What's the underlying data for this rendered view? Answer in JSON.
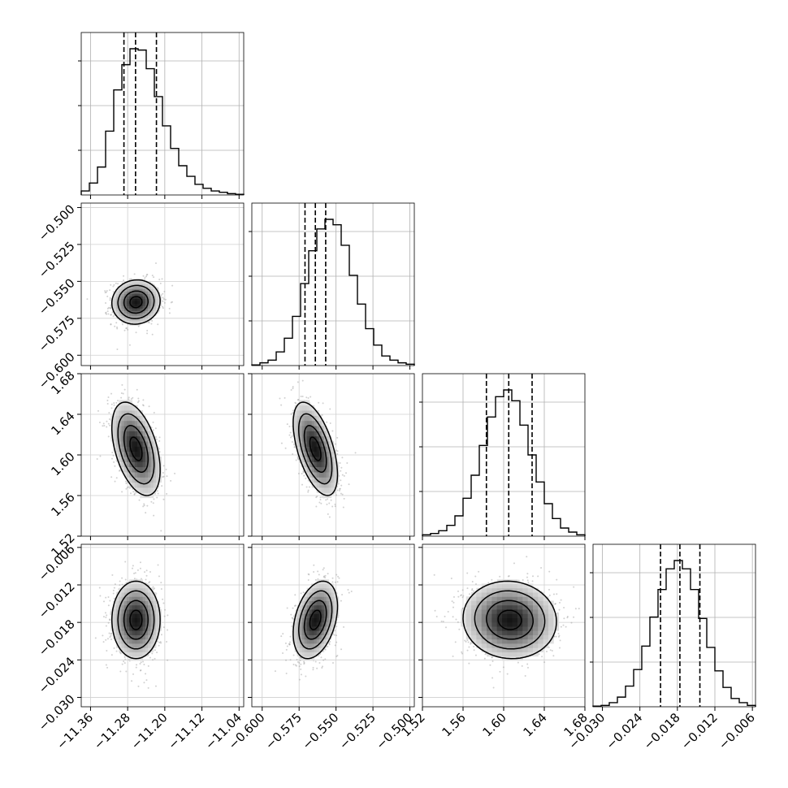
{
  "chart_data": {
    "type": "corner",
    "grid": true,
    "parameters": [
      {
        "range": [
          -11.38,
          -11.03
        ],
        "ticks": [
          "-11.36",
          "-11.28",
          "-11.20",
          "-11.12",
          "-11.04"
        ],
        "tick_values": [
          -11.36,
          -11.28,
          -11.2,
          -11.12,
          -11.04
        ],
        "quantiles": [
          -11.288,
          -11.263,
          -11.218
        ],
        "mean": -11.262,
        "std": 0.026
      },
      {
        "range": [
          -0.607,
          -0.497
        ],
        "ticks": [
          "-0.600",
          "-0.575",
          "-0.550",
          "-0.525",
          "-0.500"
        ],
        "tick_values": [
          -0.6,
          -0.575,
          -0.55,
          -0.525,
          -0.5
        ],
        "quantiles": [
          -0.571,
          -0.564,
          -0.557
        ],
        "mean": -0.564,
        "std": 0.0075
      },
      {
        "range": [
          1.52,
          1.68
        ],
        "ticks": [
          "1.52",
          "1.56",
          "1.60",
          "1.64",
          "1.68"
        ],
        "tick_values": [
          1.52,
          1.56,
          1.6,
          1.64,
          1.68
        ],
        "quantiles": [
          1.583,
          1.605,
          1.628
        ],
        "mean": 1.606,
        "std": 0.023
      },
      {
        "range": [
          -0.0315,
          -0.0055
        ],
        "ticks": [
          "-0.030",
          "-0.024",
          "-0.018",
          "-0.012",
          "-0.006"
        ],
        "tick_values": [
          -0.03,
          -0.024,
          -0.018,
          -0.012,
          -0.006
        ],
        "quantiles": [
          -0.0207,
          -0.0176,
          -0.0144
        ],
        "mean": -0.0176,
        "std": 0.0031
      }
    ],
    "histograms": [
      {
        "param": 0,
        "bins": 20,
        "counts": [
          6,
          18,
          42,
          96,
          158,
          196,
          220,
          218,
          190,
          148,
          104,
          70,
          44,
          28,
          16,
          10,
          6,
          4,
          2,
          1
        ]
      },
      {
        "param": 1,
        "bins": 20,
        "counts": [
          1,
          4,
          8,
          20,
          40,
          72,
          120,
          168,
          200,
          214,
          206,
          176,
          132,
          90,
          54,
          30,
          14,
          8,
          4,
          2
        ]
      },
      {
        "param": 2,
        "bins": 20,
        "counts": [
          2,
          4,
          8,
          16,
          30,
          56,
          90,
          134,
          176,
          206,
          216,
          200,
          164,
          120,
          80,
          48,
          26,
          12,
          6,
          2
        ]
      },
      {
        "param": 3,
        "bins": 20,
        "counts": [
          1,
          2,
          6,
          14,
          30,
          54,
          88,
          130,
          170,
          200,
          212,
          200,
          170,
          128,
          86,
          52,
          28,
          12,
          6,
          2
        ]
      }
    ],
    "pairs": [
      {
        "x_param": 0,
        "y_param": 1,
        "correlation": 0.05
      },
      {
        "x_param": 0,
        "y_param": 2,
        "correlation": -0.45
      },
      {
        "x_param": 1,
        "y_param": 2,
        "correlation": -0.55
      },
      {
        "x_param": 0,
        "y_param": 3,
        "correlation": 0.0
      },
      {
        "x_param": 1,
        "y_param": 3,
        "correlation": 0.35
      },
      {
        "x_param": 2,
        "y_param": 3,
        "correlation": -0.05
      }
    ],
    "contour_levels_sigma": [
      0.5,
      1.0,
      1.5,
      2.0
    ]
  }
}
